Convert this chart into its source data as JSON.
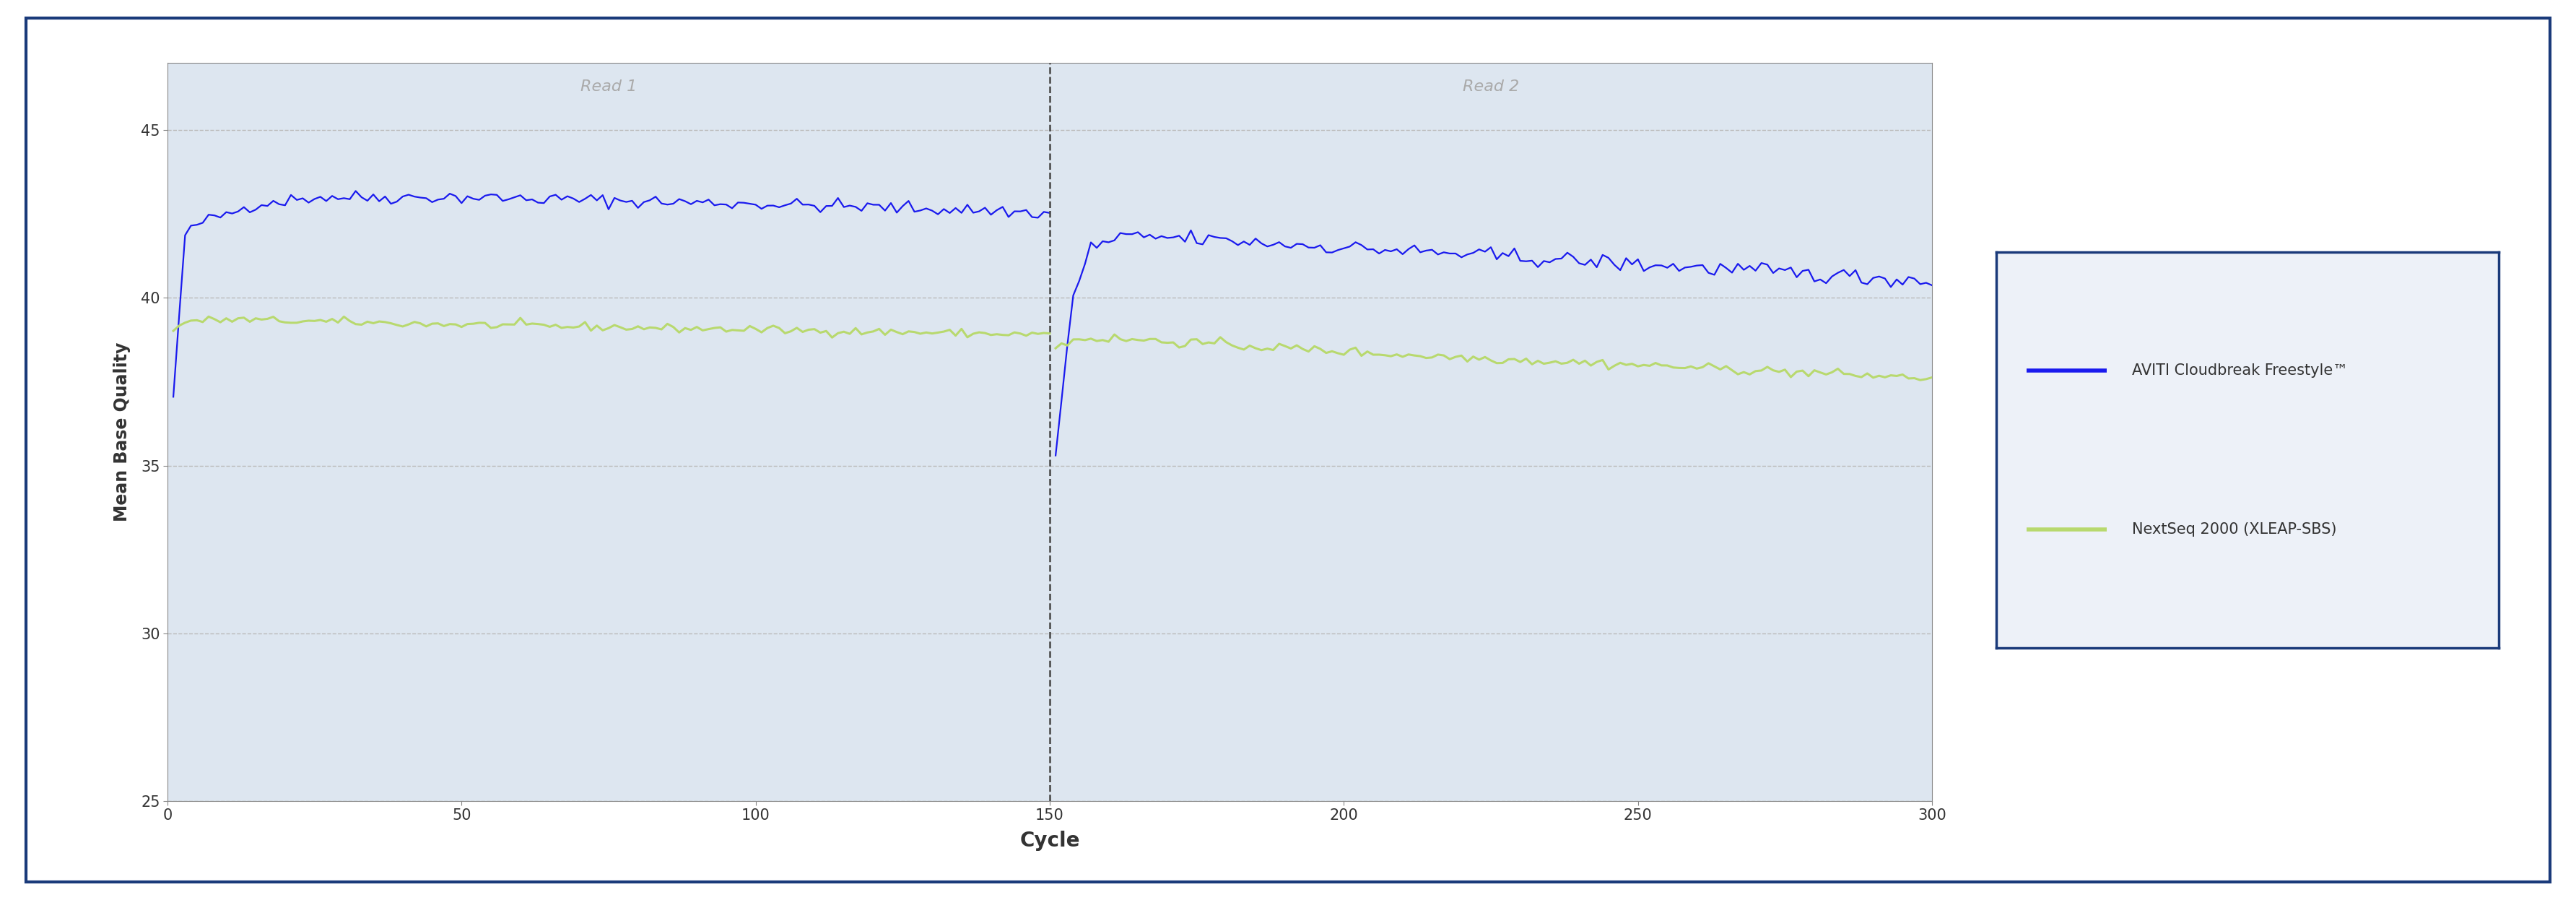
{
  "xlabel": "Cycle",
  "ylabel": "Mean Base Quality",
  "xlim": [
    0,
    300
  ],
  "ylim": [
    25,
    47
  ],
  "yticks": [
    25,
    30,
    35,
    40,
    45
  ],
  "xticks": [
    0,
    50,
    100,
    150,
    200,
    250,
    300
  ],
  "read1_label": "Read 1",
  "read2_label": "Read 2",
  "read_split": 150,
  "aviti_color": "#1a1aee",
  "nextseq_color": "#b8d96e",
  "grid_color": "#bbbbbb",
  "bg_color": "#dde6f0",
  "outer_border_color": "#1a3a7a",
  "legend_border_color": "#1a3a7a",
  "legend_bg_color": "#edf1f8",
  "legend_label_aviti": "AVITI Cloudbreak Freestyle™",
  "legend_label_nextseq": "NextSeq 2000 (XLEAP-SBS)",
  "read_label_color": "#aaaaaa",
  "tick_label_color": "#333333",
  "axis_label_color": "#333333",
  "spine_color": "#888888"
}
